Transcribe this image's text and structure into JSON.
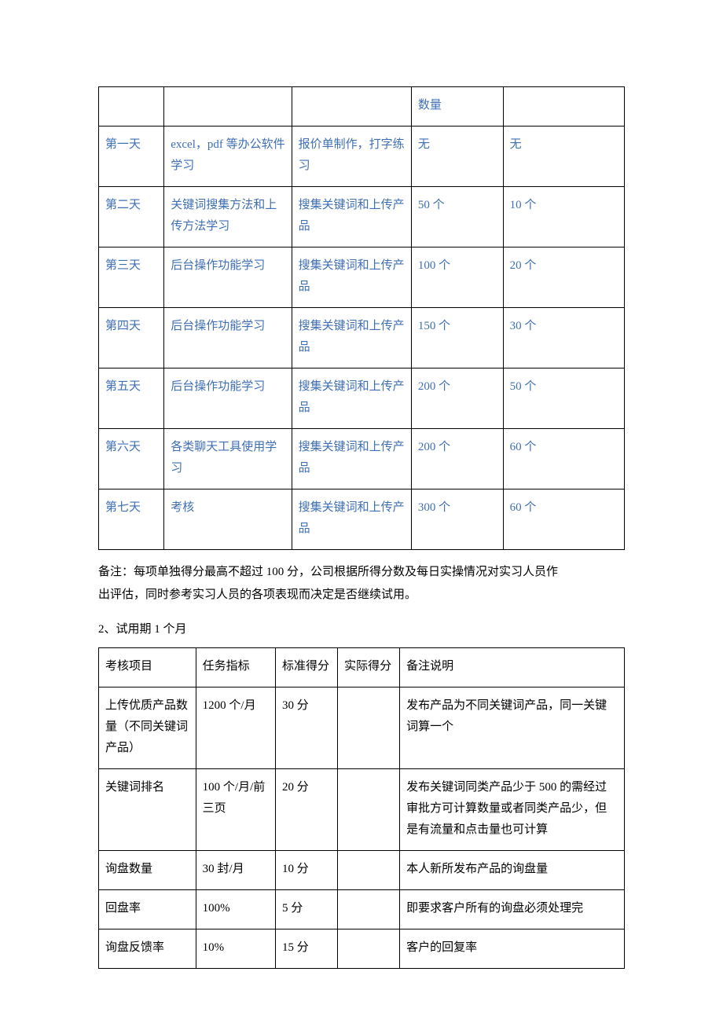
{
  "table1": {
    "col_widths": [
      "82px",
      "160px",
      "150px",
      "115px",
      "152px"
    ],
    "text_color": "#3f6fb5",
    "rows": [
      [
        "",
        "",
        "",
        "数量",
        ""
      ],
      [
        "第一天",
        "excel，pdf 等办公软件学习",
        "报价单制作，打字练习",
        "无",
        "无"
      ],
      [
        "第二天",
        "关键词搜集方法和上传方法学习",
        "搜集关键词和上传产品",
        "50 个",
        "10 个"
      ],
      [
        "第三天",
        "后台操作功能学习",
        "搜集关键词和上传产品",
        "100 个",
        "20 个"
      ],
      [
        "第四天",
        "后台操作功能学习",
        "搜集关键词和上传产品",
        "150 个",
        "30 个"
      ],
      [
        "第五天",
        "后台操作功能学习",
        "搜集关键词和上传产品",
        "200 个",
        "50 个"
      ],
      [
        "第六天",
        "各类聊天工具使用学习",
        "搜集关键词和上传产品",
        "200 个",
        "60 个"
      ],
      [
        "第七天",
        "考核",
        "搜集关键词和上传产品",
        "300 个",
        "60 个"
      ]
    ]
  },
  "note_line1": "备注：每项单独得分最高不超过 100 分，公司根据所得分数及每日实操情况对实习人员作",
  "note_line2": "出评估，同时参考实习人员的各项表现而决定是否继续试用。",
  "subheading": "2、试用期 1 个月",
  "table2": {
    "col_widths": [
      "122px",
      "100px",
      "78px",
      "78px",
      "282px"
    ],
    "rows": [
      [
        "考核项目",
        "任务指标",
        "标准得分",
        "实际得分",
        "备注说明"
      ],
      [
        "上传优质产品数量（不同关键词产品）",
        "1200 个/月",
        "30 分",
        "",
        "发布产品为不同关键词产品，同一关键词算一个"
      ],
      [
        "关键词排名",
        "100 个/月/前三页",
        "20 分",
        "",
        "发布关键词同类产品少于 500 的需经过审批方可计算数量或者同类产品少，但是有流量和点击量也可计算"
      ],
      [
        "询盘数量",
        "30 封/月",
        "10 分",
        "",
        "本人新所发布产品的询盘量"
      ],
      [
        "回盘率",
        "100%",
        "5 分",
        "",
        "即要求客户所有的询盘必须处理完"
      ],
      [
        "询盘反馈率",
        "10%",
        "15 分",
        "",
        "客户的回复率"
      ]
    ]
  }
}
